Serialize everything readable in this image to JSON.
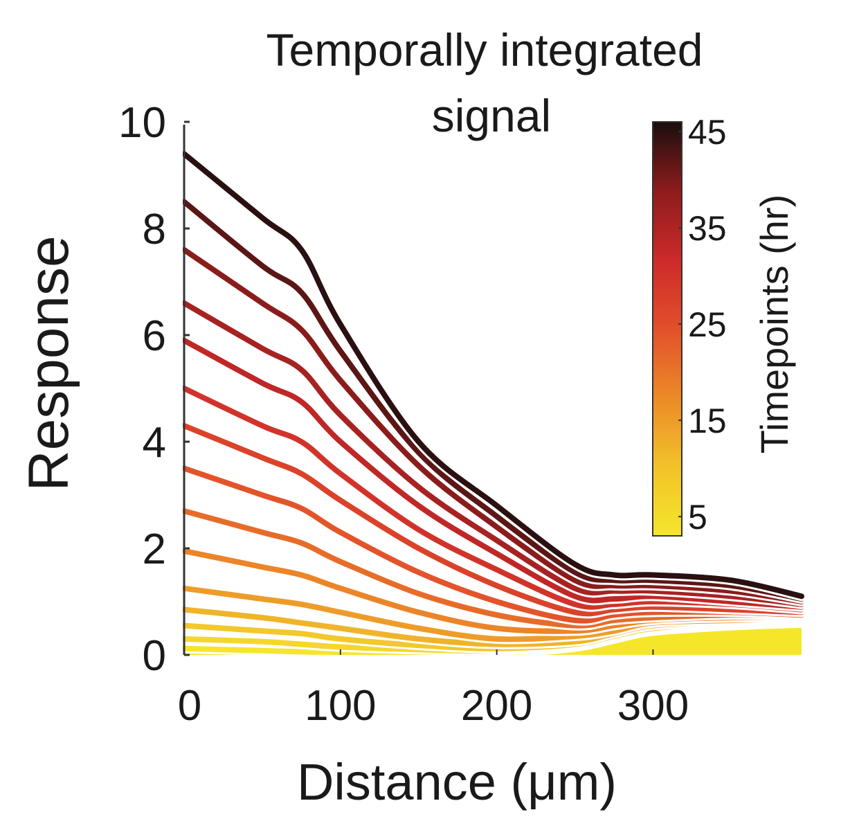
{
  "chart_data": {
    "type": "line",
    "title": "Temporally integrated signal",
    "title_lines": [
      "Temporally integrated",
      "signal"
    ],
    "xlabel": "Distance (μm)",
    "ylabel": "Response",
    "xlim": [
      0,
      395
    ],
    "ylim": [
      0,
      10
    ],
    "xticks": [
      0,
      100,
      200,
      300
    ],
    "yticks": [
      0,
      2,
      4,
      6,
      8,
      10
    ],
    "x": [
      0,
      50,
      75,
      100,
      150,
      200,
      250,
      275,
      300,
      350,
      395
    ],
    "peak_curve": [
      9.4,
      8.2,
      7.6,
      6.2,
      4.0,
      2.8,
      1.7,
      1.5,
      1.5,
      1.4,
      1.1
    ],
    "base_curve": [
      0.12,
      0.08,
      0.06,
      0.05,
      0.03,
      0.03,
      0.15,
      0.3,
      0.45,
      0.55,
      0.6
    ],
    "series": [
      {
        "t": 45,
        "values": [
          9.4,
          8.2,
          7.6,
          6.2,
          4.0,
          2.8,
          1.7,
          1.5,
          1.5,
          1.4,
          1.1
        ]
      },
      {
        "t": 42,
        "values": [
          8.5,
          7.3,
          6.8,
          5.7,
          3.8,
          2.6,
          1.55,
          1.4,
          1.4,
          1.3,
          1.05
        ]
      },
      {
        "t": 39,
        "values": [
          7.6,
          6.6,
          6.1,
          5.15,
          3.55,
          2.4,
          1.4,
          1.3,
          1.3,
          1.2,
          1.0
        ]
      },
      {
        "t": 36,
        "values": [
          6.6,
          5.75,
          5.35,
          4.5,
          3.15,
          2.15,
          1.25,
          1.2,
          1.2,
          1.1,
          0.95
        ]
      },
      {
        "t": 33,
        "values": [
          5.9,
          5.1,
          4.75,
          4.0,
          2.8,
          1.9,
          1.1,
          1.05,
          1.1,
          1.0,
          0.9
        ]
      },
      {
        "t": 30,
        "values": [
          5.0,
          4.3,
          4.0,
          3.4,
          2.35,
          1.6,
          0.95,
          0.95,
          1.0,
          0.95,
          0.85
        ]
      },
      {
        "t": 27,
        "values": [
          4.3,
          3.7,
          3.4,
          2.9,
          2.0,
          1.3,
          0.8,
          0.85,
          0.9,
          0.85,
          0.8
        ]
      },
      {
        "t": 24,
        "values": [
          3.5,
          3.0,
          2.75,
          2.3,
          1.55,
          1.0,
          0.65,
          0.75,
          0.8,
          0.8,
          0.75
        ]
      },
      {
        "t": 21,
        "values": [
          2.7,
          2.3,
          2.1,
          1.75,
          1.15,
          0.75,
          0.55,
          0.65,
          0.7,
          0.75,
          0.72
        ]
      },
      {
        "t": 18,
        "values": [
          1.95,
          1.65,
          1.5,
          1.25,
          0.8,
          0.5,
          0.45,
          0.55,
          0.65,
          0.7,
          0.7
        ]
      },
      {
        "t": 15,
        "values": [
          1.25,
          1.05,
          0.95,
          0.8,
          0.5,
          0.3,
          0.35,
          0.45,
          0.6,
          0.65,
          0.68
        ]
      },
      {
        "t": 12,
        "values": [
          0.85,
          0.7,
          0.6,
          0.5,
          0.3,
          0.2,
          0.25,
          0.4,
          0.55,
          0.62,
          0.65
        ]
      },
      {
        "t": 9,
        "values": [
          0.55,
          0.45,
          0.4,
          0.3,
          0.18,
          0.12,
          0.2,
          0.35,
          0.5,
          0.6,
          0.63
        ]
      },
      {
        "t": 6,
        "values": [
          0.3,
          0.25,
          0.2,
          0.15,
          0.1,
          0.08,
          0.18,
          0.32,
          0.48,
          0.58,
          0.62
        ]
      },
      {
        "t": 3,
        "values": [
          0.12,
          0.08,
          0.06,
          0.05,
          0.03,
          0.03,
          0.15,
          0.3,
          0.45,
          0.55,
          0.6
        ]
      }
    ],
    "colorbar": {
      "label": "Timepoints (hr)",
      "ticks": [
        5,
        15,
        25,
        35,
        45
      ],
      "range": [
        3,
        46
      ],
      "colors": [
        "#f5e62a",
        "#f2c22a",
        "#ec8a28",
        "#e2502a",
        "#cc2a2a",
        "#8e1c1c",
        "#1a0e0e"
      ]
    },
    "grid": false,
    "legend": "colorbar-right"
  }
}
